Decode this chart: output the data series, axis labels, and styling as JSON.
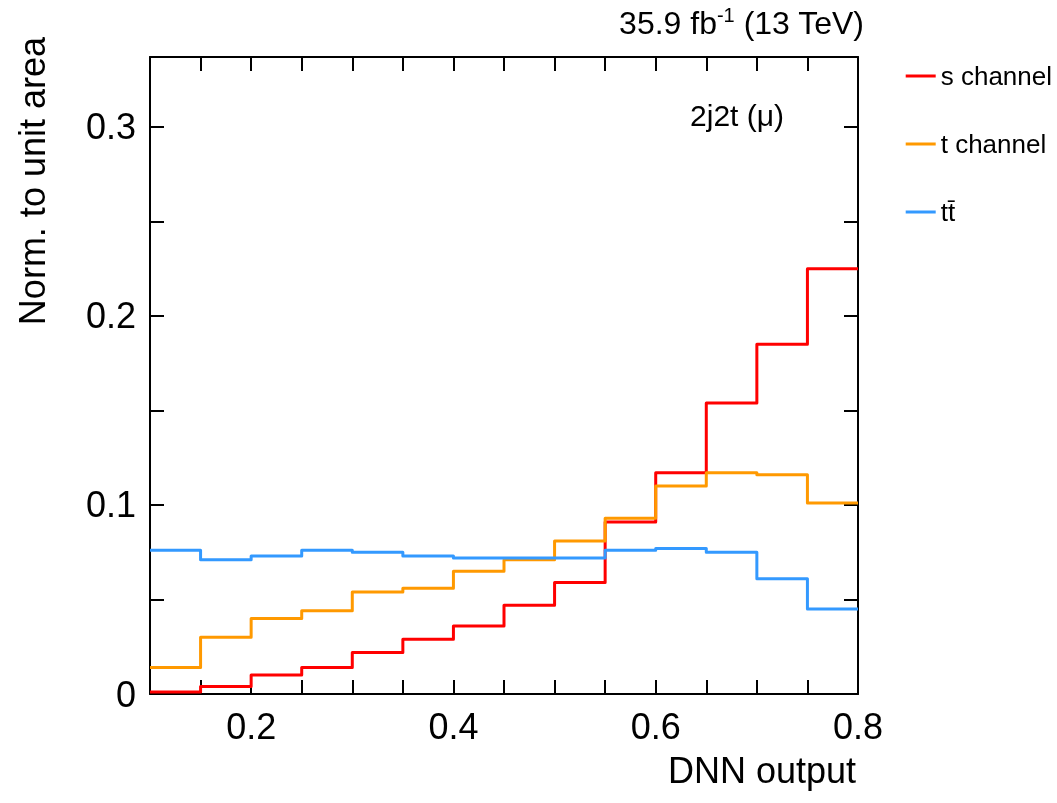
{
  "chart_data": {
    "type": "histogram",
    "title": "35.9 fb$^{-1}$ (13 TeV)",
    "xlabel": "DNN output",
    "ylabel": "Norm. to unit area",
    "annotations": [
      "2j2t (μ)"
    ],
    "bins": [
      0.1,
      0.15,
      0.2,
      0.25,
      0.3,
      0.35,
      0.4,
      0.45,
      0.5,
      0.55,
      0.6,
      0.65,
      0.7,
      0.75,
      0.8
    ],
    "series": [
      {
        "name": "s channel",
        "color": "#ff0000",
        "values": [
          0.001,
          0.004,
          0.01,
          0.014,
          0.022,
          0.029,
          0.036,
          0.047,
          0.059,
          0.091,
          0.117,
          0.154,
          0.185,
          0.225
        ]
      },
      {
        "name": "t channel",
        "color": "#ff9900",
        "values": [
          0.014,
          0.03,
          0.04,
          0.044,
          0.054,
          0.056,
          0.065,
          0.071,
          0.081,
          0.093,
          0.11,
          0.117,
          0.116,
          0.101
        ]
      },
      {
        "name": "tt̄",
        "color": "#3399ff",
        "values": [
          0.076,
          0.071,
          0.073,
          0.076,
          0.075,
          0.073,
          0.072,
          0.072,
          0.072,
          0.076,
          0.077,
          0.075,
          0.061,
          0.045
        ]
      }
    ],
    "xlim": [
      0.1,
      0.8
    ],
    "ylim": [
      0,
      0.337
    ],
    "xticks": [
      {
        "value": 0.15,
        "label": null
      },
      0.2,
      {
        "value": 0.25,
        "label": null
      },
      {
        "value": 0.3,
        "label": null
      },
      {
        "value": 0.35,
        "label": null
      },
      0.4,
      {
        "value": 0.45,
        "label": null
      },
      {
        "value": 0.5,
        "label": null
      },
      {
        "value": 0.55,
        "label": null
      },
      0.6,
      {
        "value": 0.65,
        "label": null
      },
      {
        "value": 0.7,
        "label": null
      },
      {
        "value": 0.75,
        "label": null
      },
      0.8
    ],
    "yticks": [
      0,
      {
        "value": 0.05,
        "label": null
      },
      0.1,
      {
        "value": 0.15,
        "label": null
      },
      0.2,
      {
        "value": 0.25,
        "label": null
      },
      0.3
    ],
    "legend": "right",
    "grid": false,
    "line_style": "solid",
    "marker": "none"
  }
}
